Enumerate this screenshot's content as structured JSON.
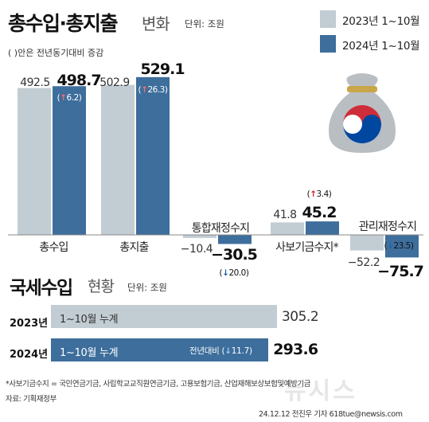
{
  "header": {
    "title": "총수입·총지출",
    "subtitle": "변화",
    "unit": "단위: 조원",
    "note": "( )안은 전년동기대비 증감"
  },
  "legend": [
    {
      "label": "2023년 1~10월",
      "color": "#c2ccd3"
    },
    {
      "label": "2024년 1~10월",
      "color": "#3d6e9c"
    }
  ],
  "colors": {
    "y2023": "#c2ccd3",
    "y2024": "#3d6e9c",
    "up": "#d0202a",
    "down": "#1f5fa8"
  },
  "chart_data": [
    {
      "type": "bar",
      "categories": [
        "총수입",
        "총지출",
        "통합재정수지",
        "사보기금수지*",
        "관리재정수지"
      ],
      "series": [
        {
          "name": "2023년 1~10월",
          "values": [
            492.5,
            502.9,
            -10.4,
            41.8,
            -52.2
          ]
        },
        {
          "name": "2024년 1~10월",
          "values": [
            498.7,
            529.1,
            -30.5,
            45.2,
            -75.7
          ]
        }
      ],
      "labels_2023": [
        "492.5",
        "502.9",
        "−10.4",
        "41.8",
        "−52.2"
      ],
      "labels_2024": [
        "498.7",
        "529.1",
        "−30.5",
        "45.2",
        "−75.7"
      ],
      "changes": [
        {
          "dir": "up",
          "arrow": "↑",
          "value": "6.2"
        },
        {
          "dir": "up",
          "arrow": "↑",
          "value": "26.3"
        },
        {
          "dir": "down",
          "arrow": "↓",
          "value": "20.0"
        },
        {
          "dir": "up",
          "arrow": "↑",
          "value": "3.4"
        },
        {
          "dir": "down",
          "arrow": "↓",
          "value": "23.5"
        }
      ],
      "title": "총수입·총지출 변화",
      "ylabel": "조원"
    },
    {
      "type": "bar",
      "orientation": "horizontal",
      "title": "국세수입 현황",
      "unit": "조원",
      "categories": [
        "2023년",
        "2024년"
      ],
      "bar_label": "1~10월 누계",
      "values": [
        305.2,
        293.6
      ],
      "value_labels": [
        "305.2",
        "293.6"
      ],
      "change_label": "전년대비",
      "change": {
        "dir": "down",
        "arrow": "↓",
        "value": "11.7"
      }
    }
  ],
  "section2": {
    "title": "국세수입",
    "subtitle": "현황",
    "unit": "단위: 조원"
  },
  "footnote": "*사보기금수지 = 국민연금기금, 사립학교교직원연금기금, 고용보험기금, 산업재해보상보험및예방기금",
  "source": "자료: 기획재정부",
  "credit": "24.12.12 전진우 기자 618tue@newsis.com",
  "watermark": "뉴시스",
  "icons": {
    "bag": "money-bag-icon"
  }
}
